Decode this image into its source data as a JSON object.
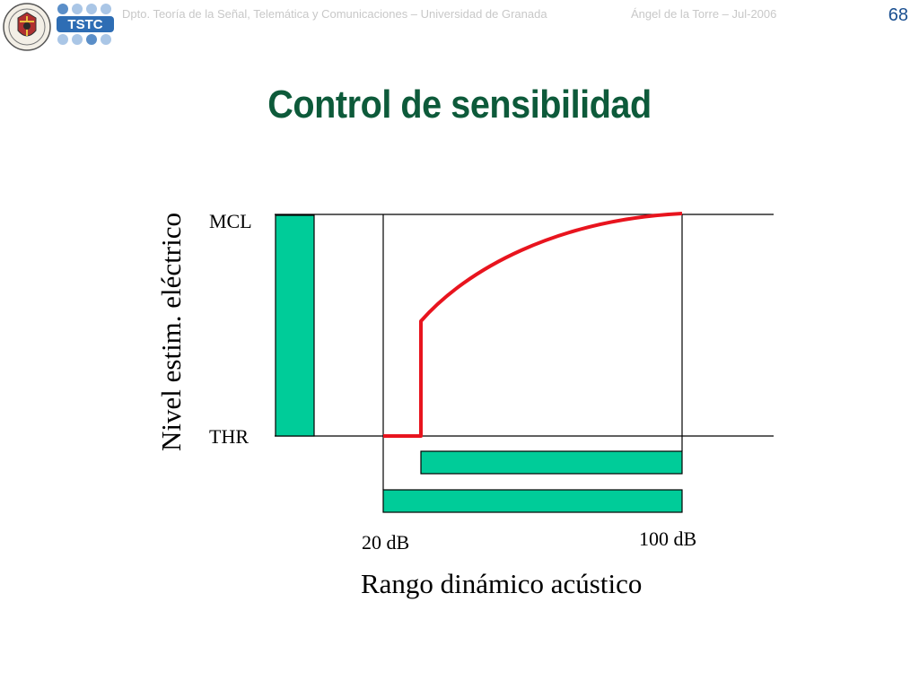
{
  "header": {
    "department": "Dpto. Teoría de la Señal, Telemática y Comunicaciones – Universidad de Granada",
    "author": "Ángel de la Torre – Jul-2006",
    "page_number": "68",
    "logo_text": "TSTC"
  },
  "slide": {
    "title": "Control de sensibilidad"
  },
  "diagram": {
    "mcl_label": "MCL",
    "thr_label": "THR",
    "y_axis_label": "Nivel estim. eléctrico",
    "x_axis_label": "Rango dinámico acústico",
    "tick_20": "20 dB",
    "tick_100": "100 dB",
    "colors": {
      "bar_fill": "#00cc99",
      "curve": "#e8141e",
      "title": "#0d5a3a"
    }
  }
}
